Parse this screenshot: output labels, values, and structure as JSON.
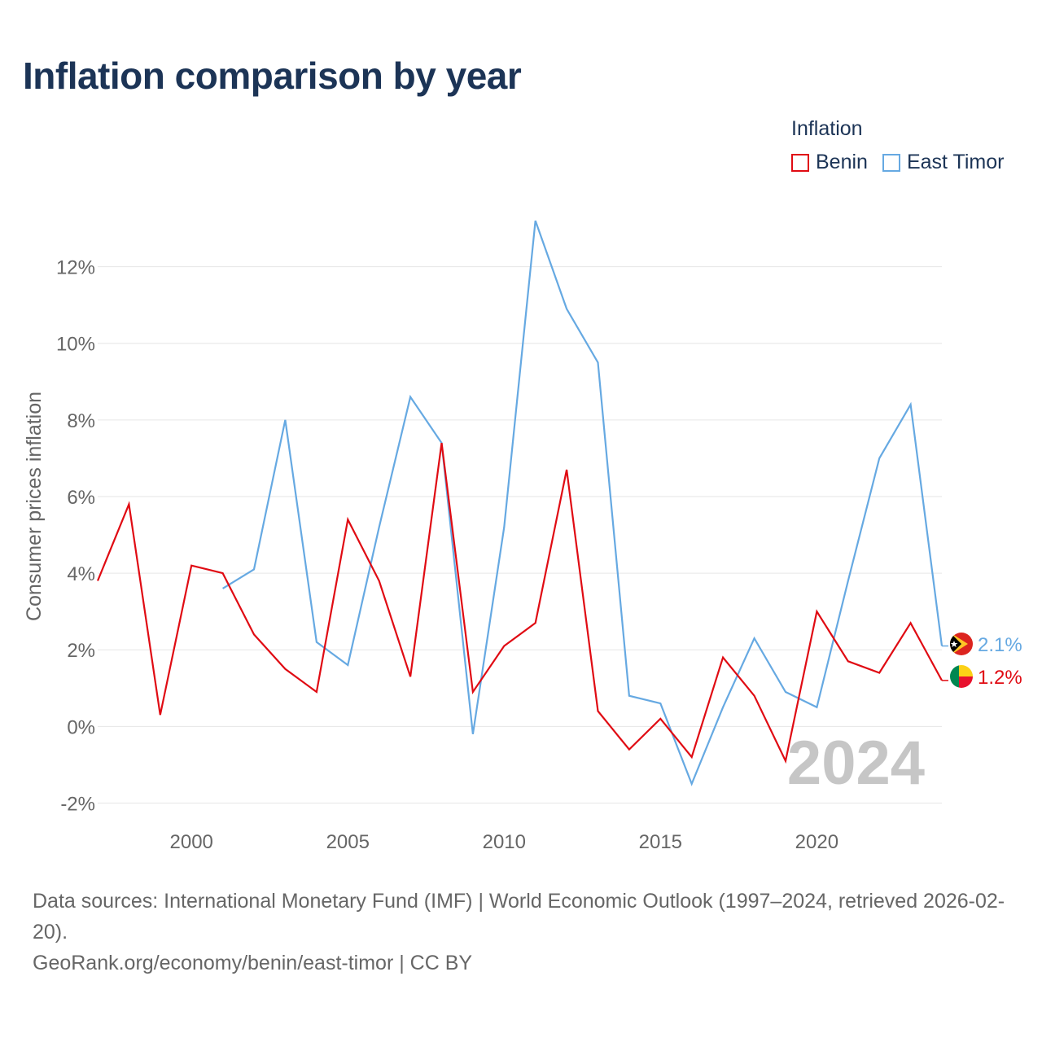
{
  "title": "Inflation comparison by year",
  "legend": {
    "title": "Inflation",
    "items": [
      {
        "name": "Benin",
        "color": "#e00b13"
      },
      {
        "name": "East Timor",
        "color": "#66a9e2"
      }
    ]
  },
  "chart_data": {
    "type": "line",
    "title": "Inflation comparison by year",
    "xlabel": "",
    "ylabel": "Consumer prices inflation",
    "xlim": [
      1997,
      2024
    ],
    "ylim": [
      -2.5,
      13.5
    ],
    "xticks": [
      2000,
      2005,
      2010,
      2015,
      2020
    ],
    "yticks": [
      {
        "value": -2,
        "label": "-2%"
      },
      {
        "value": 0,
        "label": "0%"
      },
      {
        "value": 2,
        "label": "2%"
      },
      {
        "value": 4,
        "label": "4%"
      },
      {
        "value": 6,
        "label": "6%"
      },
      {
        "value": 8,
        "label": "8%"
      },
      {
        "value": 10,
        "label": "10%"
      },
      {
        "value": 12,
        "label": "12%"
      }
    ],
    "grid": true,
    "watermark_year": "2024",
    "series": [
      {
        "name": "Benin",
        "color": "#e00b13",
        "end_label": "1.2%",
        "flag": "benin",
        "x": [
          1997,
          1998,
          1999,
          2000,
          2001,
          2002,
          2003,
          2004,
          2005,
          2006,
          2007,
          2008,
          2009,
          2010,
          2011,
          2012,
          2013,
          2014,
          2015,
          2016,
          2017,
          2018,
          2019,
          2020,
          2021,
          2022,
          2023,
          2024
        ],
        "values": [
          3.8,
          5.8,
          0.3,
          4.2,
          4.0,
          2.4,
          1.5,
          0.9,
          5.4,
          3.8,
          1.3,
          7.4,
          0.9,
          2.1,
          2.7,
          6.7,
          0.4,
          -0.6,
          0.2,
          -0.8,
          1.8,
          0.8,
          -0.9,
          3.0,
          1.7,
          1.4,
          2.7,
          1.2
        ]
      },
      {
        "name": "East Timor",
        "color": "#66a9e2",
        "end_label": "2.1%",
        "flag": "east-timor",
        "x": [
          2001,
          2002,
          2003,
          2004,
          2005,
          2006,
          2007,
          2008,
          2009,
          2010,
          2011,
          2012,
          2013,
          2014,
          2015,
          2016,
          2017,
          2018,
          2019,
          2020,
          2021,
          2022,
          2023,
          2024
        ],
        "values": [
          3.6,
          4.1,
          8.0,
          2.2,
          1.6,
          5.2,
          8.6,
          7.4,
          -0.2,
          5.2,
          13.2,
          10.9,
          9.5,
          0.8,
          0.6,
          -1.5,
          0.5,
          2.3,
          0.9,
          0.5,
          3.8,
          7.0,
          8.4,
          2.1
        ]
      }
    ]
  },
  "footer": {
    "sources": "Data sources: International Monetary Fund (IMF) | World Economic Outlook (1997–2024, retrieved 2026-02-20).",
    "attribution": "GeoRank.org/economy/benin/east-timor | CC BY"
  }
}
